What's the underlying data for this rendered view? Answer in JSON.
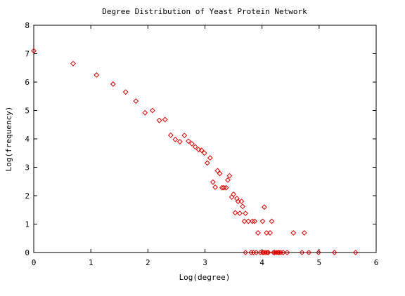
{
  "chart_data": {
    "type": "scatter",
    "title": "Degree Distribution of Yeast Protein Network",
    "xlabel": "Log(degree)",
    "ylabel": "Log(frequency)",
    "xlim": [
      0,
      6
    ],
    "ylim": [
      0,
      8
    ],
    "xticks": [
      "0",
      "1",
      "2",
      "3",
      "4",
      "5",
      "6"
    ],
    "yticks": [
      "0",
      "1",
      "2",
      "3",
      "4",
      "5",
      "6",
      "7",
      "8"
    ],
    "marker": "diamond",
    "marker_color": "#e00000",
    "grid": false,
    "legend": "none",
    "series": [
      {
        "points": [
          [
            0.0,
            7.1
          ],
          [
            0.69,
            6.65
          ],
          [
            1.1,
            6.25
          ],
          [
            1.39,
            5.93
          ],
          [
            1.61,
            5.65
          ],
          [
            1.79,
            5.33
          ],
          [
            1.95,
            4.92
          ],
          [
            2.08,
            5.0
          ],
          [
            2.2,
            4.65
          ],
          [
            2.3,
            4.68
          ],
          [
            2.4,
            4.13
          ],
          [
            2.48,
            3.98
          ],
          [
            2.56,
            3.9
          ],
          [
            2.64,
            4.12
          ],
          [
            2.71,
            3.92
          ],
          [
            2.77,
            3.83
          ],
          [
            2.83,
            3.72
          ],
          [
            2.89,
            3.62
          ],
          [
            2.94,
            3.6
          ],
          [
            2.99,
            3.5
          ],
          [
            3.04,
            3.15
          ],
          [
            3.09,
            3.33
          ],
          [
            3.14,
            2.48
          ],
          [
            3.18,
            2.3
          ],
          [
            3.22,
            2.88
          ],
          [
            3.26,
            2.78
          ],
          [
            3.3,
            2.28
          ],
          [
            3.33,
            2.28
          ],
          [
            3.37,
            2.28
          ],
          [
            3.4,
            2.55
          ],
          [
            3.43,
            2.7
          ],
          [
            3.47,
            1.95
          ],
          [
            3.5,
            2.05
          ],
          [
            3.53,
            1.4
          ],
          [
            3.56,
            1.9
          ],
          [
            3.58,
            1.8
          ],
          [
            3.61,
            1.38
          ],
          [
            3.64,
            1.8
          ],
          [
            3.66,
            1.62
          ],
          [
            3.69,
            1.1
          ],
          [
            3.71,
            1.38
          ],
          [
            3.76,
            1.1
          ],
          [
            3.83,
            1.1
          ],
          [
            3.87,
            1.1
          ],
          [
            3.93,
            0.69
          ],
          [
            4.01,
            1.1
          ],
          [
            4.04,
            1.6
          ],
          [
            4.08,
            0.69
          ],
          [
            4.14,
            0.69
          ],
          [
            4.17,
            1.1
          ],
          [
            4.55,
            0.69
          ],
          [
            4.74,
            0.69
          ],
          [
            3.71,
            0.0
          ],
          [
            3.81,
            0.0
          ],
          [
            3.85,
            0.0
          ],
          [
            3.9,
            0.0
          ],
          [
            3.97,
            0.0
          ],
          [
            4.01,
            0.0
          ],
          [
            4.03,
            0.0
          ],
          [
            4.06,
            0.0
          ],
          [
            4.09,
            0.0
          ],
          [
            4.11,
            0.0
          ],
          [
            4.2,
            0.0
          ],
          [
            4.22,
            0.0
          ],
          [
            4.25,
            0.0
          ],
          [
            4.28,
            0.0
          ],
          [
            4.3,
            0.0
          ],
          [
            4.33,
            0.0
          ],
          [
            4.37,
            0.0
          ],
          [
            4.44,
            0.0
          ],
          [
            4.7,
            0.0
          ],
          [
            4.82,
            0.0
          ],
          [
            4.99,
            0.0
          ],
          [
            5.27,
            0.0
          ],
          [
            5.64,
            0.0
          ]
        ]
      }
    ]
  }
}
